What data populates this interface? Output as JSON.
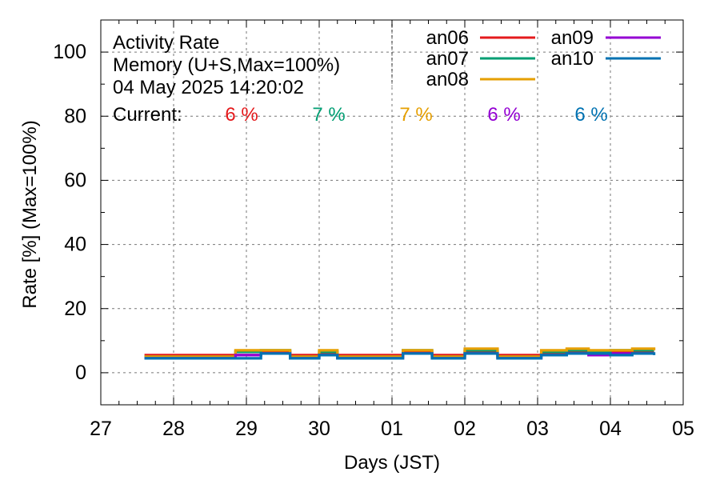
{
  "chart_data": {
    "type": "line",
    "title_lines": [
      "Activity Rate",
      "Memory (U+S,Max=100%)",
      "04 May 2025 14:20:02"
    ],
    "current_label": "Current:",
    "current_values": [
      "6 %",
      "7 %",
      "7 %",
      "6 %",
      "6 %"
    ],
    "xlabel": "Days (JST)",
    "ylabel": "Rate [%]  (Max=100%)",
    "xlim": [
      27,
      35
    ],
    "ylim": [
      -10,
      110
    ],
    "yticks": [
      0,
      20,
      40,
      60,
      80,
      100
    ],
    "xtick_labels": [
      "27",
      "28",
      "29",
      "30",
      "01",
      "02",
      "03",
      "04",
      "05"
    ],
    "grid": true,
    "legend_position": "top-right",
    "series": [
      {
        "name": "an06",
        "color": "#e41a1c",
        "x": [
          27.6,
          28.55,
          28.6,
          29.2,
          29.6,
          30.0,
          30.25,
          31.15,
          31.55,
          32.0,
          32.45,
          33.05,
          33.4,
          33.7,
          34.0,
          34.3,
          34.6
        ],
        "y": [
          5.5,
          5.5,
          5.5,
          6.5,
          5.5,
          6.0,
          5.5,
          6.5,
          5.5,
          6.5,
          5.5,
          6.0,
          6.5,
          6.5,
          6.5,
          6.5,
          6.5
        ]
      },
      {
        "name": "an07",
        "color": "#009e73",
        "x": [
          27.6,
          28.6,
          28.85,
          29.2,
          29.6,
          30.0,
          30.25,
          31.15,
          31.55,
          32.0,
          32.45,
          33.05,
          33.4,
          33.7,
          34.0,
          34.3,
          34.6
        ],
        "y": [
          5.0,
          5.0,
          6.5,
          7.0,
          5.0,
          6.5,
          5.0,
          7.0,
          5.0,
          7.0,
          5.0,
          6.5,
          7.0,
          6.5,
          7.0,
          7.0,
          7.0
        ]
      },
      {
        "name": "an08",
        "color": "#e69f00",
        "x": [
          27.6,
          28.6,
          28.85,
          29.2,
          29.6,
          30.0,
          30.25,
          31.15,
          31.55,
          32.0,
          32.45,
          33.05,
          33.4,
          33.7,
          34.0,
          34.3,
          34.6
        ],
        "y": [
          5.0,
          5.0,
          7.0,
          7.0,
          5.0,
          7.0,
          5.0,
          7.0,
          5.0,
          7.5,
          5.0,
          7.0,
          7.5,
          7.0,
          7.0,
          7.5,
          7.0
        ]
      },
      {
        "name": "an09",
        "color": "#9400d3",
        "x": [
          27.6,
          28.6,
          28.85,
          29.2,
          29.6,
          30.0,
          30.25,
          31.15,
          31.55,
          32.0,
          32.45,
          33.05,
          33.4,
          33.7,
          34.0,
          34.3,
          34.6
        ],
        "y": [
          4.5,
          4.5,
          5.5,
          6.0,
          4.5,
          5.5,
          4.5,
          6.0,
          4.5,
          6.0,
          4.5,
          5.5,
          6.0,
          5.5,
          6.0,
          6.0,
          6.0
        ]
      },
      {
        "name": "an10",
        "color": "#0072b2",
        "x": [
          27.6,
          28.6,
          28.85,
          29.2,
          29.6,
          30.0,
          30.25,
          31.15,
          31.55,
          32.0,
          32.45,
          33.05,
          33.4,
          33.7,
          34.0,
          34.3,
          34.6
        ],
        "y": [
          4.5,
          4.5,
          4.5,
          6.0,
          4.5,
          5.5,
          4.5,
          6.0,
          4.5,
          6.0,
          4.5,
          5.5,
          6.0,
          6.0,
          5.5,
          6.0,
          5.5
        ]
      }
    ]
  }
}
